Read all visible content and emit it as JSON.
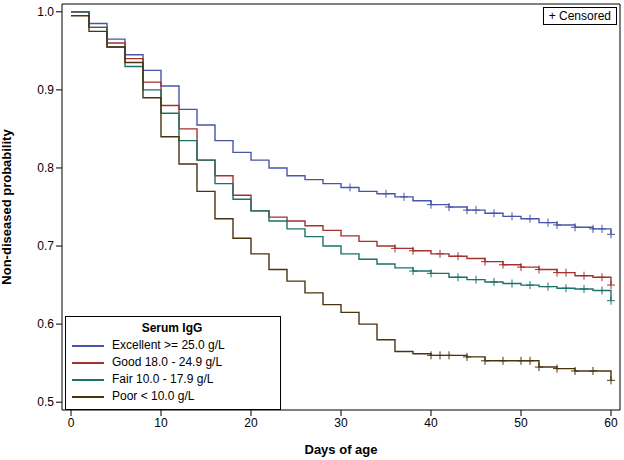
{
  "chart_data": {
    "type": "line",
    "xlabel": "Days of age",
    "ylabel": "Non-diseased probability",
    "legend_title": "Serum IgG",
    "annotations": [
      "+ Censored"
    ],
    "legend": "lower left",
    "grid": false,
    "line_style": "step",
    "xlim": [
      -1,
      61
    ],
    "xticks": [
      0,
      10,
      20,
      30,
      40,
      50,
      60
    ],
    "ylim": [
      0.49,
      1.01
    ],
    "yticks": [
      0.5,
      0.6,
      0.7,
      0.8,
      0.9,
      {
        "value": 1,
        "label": "1.0"
      }
    ],
    "x": [
      0,
      2,
      4,
      6,
      8,
      10,
      12,
      14,
      16,
      18,
      20,
      22,
      24,
      26,
      28,
      30,
      32,
      34,
      36,
      38,
      40,
      42,
      44,
      46,
      48,
      50,
      52,
      54,
      56,
      58,
      60
    ],
    "series": [
      {
        "name": "Excellent >= 25.0 g/L",
        "color": "#4756a8",
        "values": [
          1.0,
          0.985,
          0.965,
          0.945,
          0.925,
          0.905,
          0.875,
          0.855,
          0.835,
          0.82,
          0.81,
          0.8,
          0.79,
          0.785,
          0.78,
          0.775,
          0.77,
          0.767,
          0.763,
          0.758,
          0.753,
          0.75,
          0.746,
          0.742,
          0.738,
          0.735,
          0.73,
          0.727,
          0.724,
          0.722,
          0.715
        ],
        "censored_x": [
          31,
          35,
          37,
          40,
          42,
          44,
          45,
          47,
          49,
          51,
          53,
          54,
          56,
          58,
          59,
          60
        ]
      },
      {
        "name": "Good 18.0 - 24.9 g/L",
        "color": "#a3322e",
        "values": [
          1.0,
          0.98,
          0.96,
          0.94,
          0.91,
          0.88,
          0.85,
          0.81,
          0.79,
          0.765,
          0.745,
          0.737,
          0.732,
          0.726,
          0.72,
          0.713,
          0.706,
          0.7,
          0.697,
          0.694,
          0.69,
          0.687,
          0.684,
          0.68,
          0.676,
          0.673,
          0.67,
          0.666,
          0.662,
          0.66,
          0.65
        ],
        "censored_x": [
          36,
          38,
          41,
          43,
          46,
          48,
          50,
          52,
          54,
          55,
          57,
          59,
          60
        ]
      },
      {
        "name": "Fair 10.0 - 17.9 g/L",
        "color": "#1b7269",
        "values": [
          1.0,
          0.98,
          0.955,
          0.93,
          0.9,
          0.87,
          0.835,
          0.81,
          0.78,
          0.76,
          0.745,
          0.732,
          0.722,
          0.712,
          0.7,
          0.69,
          0.683,
          0.677,
          0.672,
          0.668,
          0.665,
          0.66,
          0.657,
          0.654,
          0.652,
          0.65,
          0.648,
          0.646,
          0.645,
          0.643,
          0.63
        ],
        "censored_x": [
          38,
          40,
          43,
          45,
          47,
          49,
          51,
          53,
          55,
          57,
          59,
          60
        ]
      },
      {
        "name": "Poor < 10.0 g/L",
        "color": "#4a3410",
        "values": [
          0.995,
          0.975,
          0.955,
          0.935,
          0.89,
          0.84,
          0.805,
          0.77,
          0.735,
          0.71,
          0.69,
          0.67,
          0.655,
          0.64,
          0.625,
          0.615,
          0.6,
          0.58,
          0.565,
          0.562,
          0.56,
          0.56,
          0.558,
          0.553,
          0.553,
          0.553,
          0.545,
          0.543,
          0.54,
          0.54,
          0.528
        ],
        "censored_x": [
          40,
          41,
          42,
          44,
          46,
          48,
          50,
          51,
          52,
          54,
          56,
          58,
          60
        ]
      }
    ]
  }
}
